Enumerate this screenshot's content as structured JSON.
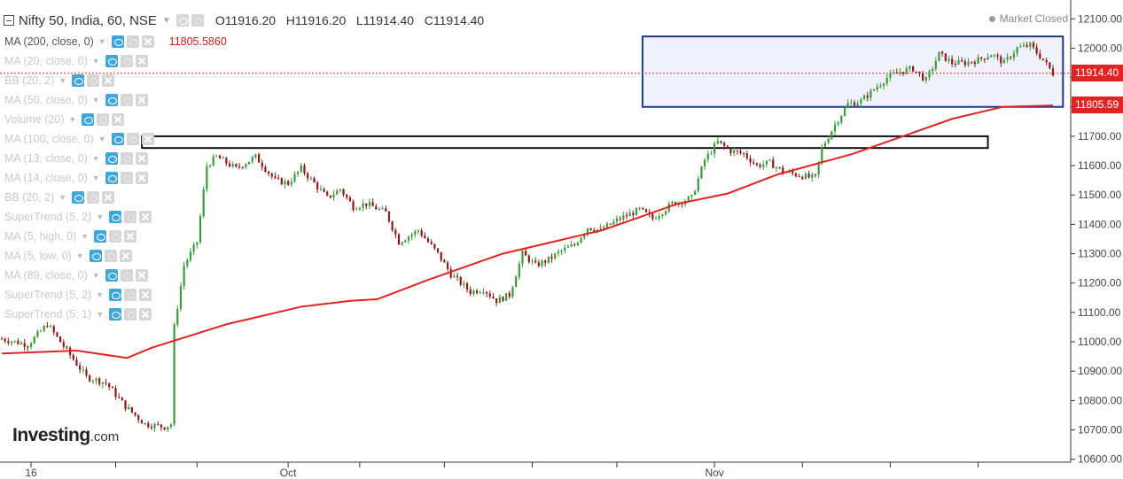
{
  "header": {
    "symbol": "Nifty 50, India, 60, NSE",
    "ohlc": {
      "open_label": "O",
      "open": "11916.20",
      "high_label": "H",
      "high": "11916.20",
      "low_label": "L",
      "low": "11914.40",
      "close_label": "C",
      "close": "11914.40"
    },
    "market_status": "Market Closed"
  },
  "indicators": [
    {
      "label": "MA (200, close, 0)",
      "active": true,
      "value": "11805.5860"
    },
    {
      "label": "MA (20, close, 0)",
      "active": false
    },
    {
      "label": "BB (20, 2)",
      "active": false
    },
    {
      "label": "MA (50, close, 0)",
      "active": false
    },
    {
      "label": "Volume (20)",
      "active": false
    },
    {
      "label": "MA (100, close, 0)",
      "active": false
    },
    {
      "label": "MA (13, close, 0)",
      "active": false
    },
    {
      "label": "MA (14, close, 0)",
      "active": false
    },
    {
      "label": "BB (20, 2)",
      "active": false
    },
    {
      "label": "SuperTrend (5, 2)",
      "active": false
    },
    {
      "label": "MA (5, high, 0)",
      "active": false
    },
    {
      "label": "MA (5, low, 0)",
      "active": false
    },
    {
      "label": "MA (89, close, 0)",
      "active": false
    },
    {
      "label": "SuperTrend (5, 2)",
      "active": false
    },
    {
      "label": "SuperTrend (5, 1)",
      "active": false
    }
  ],
  "logo": {
    "name": "Investing",
    "suffix": ".com"
  },
  "price_tags": [
    {
      "label": "11914.40",
      "value": 11914.4
    },
    {
      "label": "11805.59",
      "value": 11805.59
    }
  ],
  "colors": {
    "up": "#3a9b3a",
    "down": "#8b1a1a",
    "ma": "#e02424",
    "box_blue": "#1f3a8a",
    "box_fill": "#eef0fb",
    "zone": "#111111",
    "axis_text": "#444444"
  },
  "chart_data": {
    "type": "candlestick",
    "ylim": [
      10590,
      12140
    ],
    "y_ticks": [
      "12100.00",
      "12000.00",
      "11900.00",
      "11800.00",
      "11700.00",
      "11600.00",
      "11500.00",
      "11400.00",
      "11300.00",
      "11200.00",
      "11100.00",
      "11000.00",
      "10900.00",
      "10800.00",
      "10700.00",
      "10600.00"
    ],
    "x_labels": [
      {
        "label": "16",
        "bar": 9
      },
      {
        "label": "Oct",
        "bar": 88
      },
      {
        "label": "Nov",
        "bar": 219
      }
    ],
    "bar_count": 324,
    "close_path": [
      [
        0,
        11010
      ],
      [
        8,
        10990
      ],
      [
        14,
        11060
      ],
      [
        20,
        10970
      ],
      [
        26,
        10880
      ],
      [
        32,
        10860
      ],
      [
        38,
        10780
      ],
      [
        44,
        10720
      ],
      [
        50,
        10710
      ],
      [
        52,
        10720
      ],
      [
        53,
        11050
      ],
      [
        56,
        11260
      ],
      [
        60,
        11340
      ],
      [
        63,
        11600
      ],
      [
        66,
        11630
      ],
      [
        72,
        11590
      ],
      [
        78,
        11630
      ],
      [
        84,
        11550
      ],
      [
        88,
        11540
      ],
      [
        92,
        11590
      ],
      [
        96,
        11540
      ],
      [
        100,
        11490
      ],
      [
        104,
        11520
      ],
      [
        108,
        11460
      ],
      [
        112,
        11470
      ],
      [
        118,
        11440
      ],
      [
        122,
        11340
      ],
      [
        128,
        11380
      ],
      [
        134,
        11300
      ],
      [
        138,
        11230
      ],
      [
        144,
        11170
      ],
      [
        148,
        11180
      ],
      [
        152,
        11140
      ],
      [
        156,
        11160
      ],
      [
        160,
        11300
      ],
      [
        164,
        11260
      ],
      [
        168,
        11280
      ],
      [
        172,
        11310
      ],
      [
        176,
        11330
      ],
      [
        180,
        11390
      ],
      [
        184,
        11380
      ],
      [
        190,
        11420
      ],
      [
        196,
        11450
      ],
      [
        200,
        11420
      ],
      [
        206,
        11470
      ],
      [
        212,
        11490
      ],
      [
        216,
        11620
      ],
      [
        220,
        11680
      ],
      [
        224,
        11650
      ],
      [
        228,
        11640
      ],
      [
        232,
        11600
      ],
      [
        236,
        11610
      ],
      [
        240,
        11580
      ],
      [
        244,
        11570
      ],
      [
        248,
        11560
      ],
      [
        250,
        11560
      ],
      [
        252,
        11660
      ],
      [
        256,
        11740
      ],
      [
        260,
        11810
      ],
      [
        264,
        11820
      ],
      [
        268,
        11860
      ],
      [
        272,
        11900
      ],
      [
        276,
        11920
      ],
      [
        280,
        11930
      ],
      [
        284,
        11890
      ],
      [
        288,
        11980
      ],
      [
        292,
        11950
      ],
      [
        296,
        11950
      ],
      [
        300,
        11960
      ],
      [
        304,
        11980
      ],
      [
        308,
        11950
      ],
      [
        312,
        12000
      ],
      [
        316,
        12010
      ],
      [
        320,
        11960
      ],
      [
        323,
        11914
      ]
    ],
    "series": [
      {
        "name": "MA (200, close, 0)",
        "points": [
          [
            0,
            10960
          ],
          [
            30,
            10970
          ],
          [
            50,
            10945
          ],
          [
            60,
            10980
          ],
          [
            90,
            11060
          ],
          [
            120,
            11120
          ],
          [
            140,
            11140
          ],
          [
            150,
            11145
          ],
          [
            170,
            11210
          ],
          [
            200,
            11300
          ],
          [
            240,
            11380
          ],
          [
            270,
            11470
          ],
          [
            290,
            11505
          ],
          [
            310,
            11570
          ],
          [
            340,
            11640
          ],
          [
            360,
            11700
          ],
          [
            380,
            11760
          ],
          [
            400,
            11800
          ],
          [
            420,
            11805
          ]
        ]
      }
    ],
    "annotations": [
      {
        "type": "rect",
        "name": "resistance-zone",
        "x0": 56,
        "x1": 394,
        "y0": 11660,
        "y1": 11700
      },
      {
        "type": "rect",
        "name": "consolidation-box",
        "x0": 256,
        "x1": 424,
        "y0": 11800,
        "y1": 12040
      }
    ],
    "hlines": [
      {
        "value": 11914.4,
        "style": "dotted"
      }
    ],
    "grid": false,
    "legend": "none"
  }
}
